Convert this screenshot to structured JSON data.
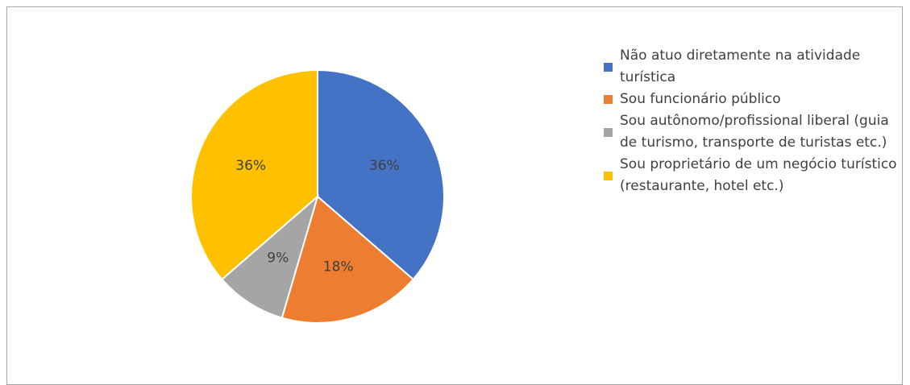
{
  "chart_data": {
    "type": "pie",
    "title": "",
    "legend_position": "right",
    "categories": [
      "Não atuo diretamente na atividade turística",
      "Sou funcionário público",
      "Sou autônomo/profissional liberal (guia de turismo, transporte de turistas etc.)",
      "Sou proprietário de um negócio turístico (restaurante, hotel etc.)"
    ],
    "values": [
      36,
      18,
      9,
      36
    ],
    "data_labels": [
      "36%",
      "18%",
      "9%",
      "36%"
    ],
    "colors": [
      "#4472c4",
      "#ed7d31",
      "#a5a5a5",
      "#ffc000"
    ]
  }
}
